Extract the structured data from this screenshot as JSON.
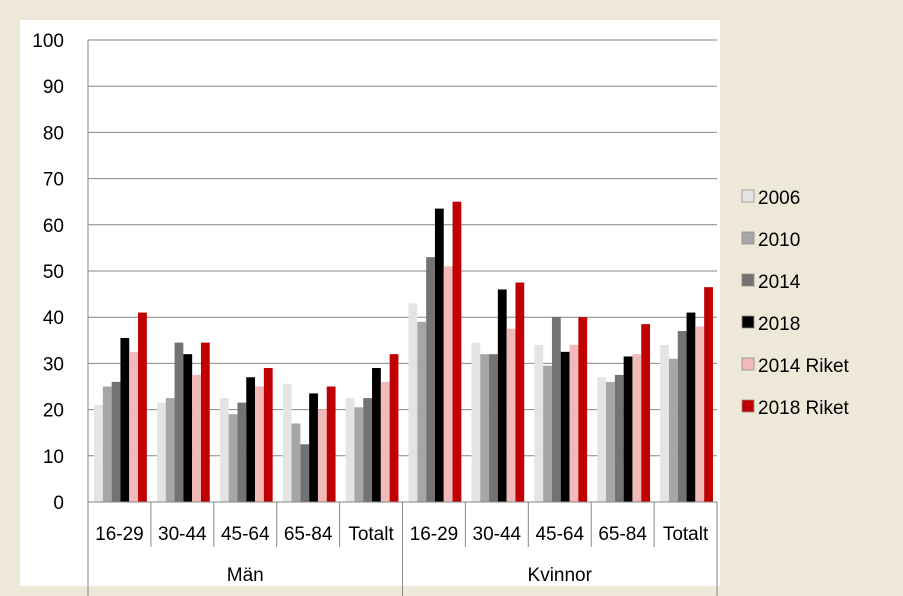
{
  "chart_data": {
    "type": "bar",
    "title": "",
    "categories": [
      "16-29",
      "30-44",
      "45-64",
      "65-84",
      "Totalt",
      "16-29",
      "30-44",
      "45-64",
      "65-84",
      "Totalt"
    ],
    "groups": [
      {
        "label": "Män",
        "count": 5
      },
      {
        "label": "Kvinnor",
        "count": 5
      }
    ],
    "series": [
      {
        "name": "2006",
        "color": "#e4e4e4",
        "values": [
          21,
          21.5,
          22.5,
          25.5,
          22.5,
          43,
          34.5,
          34,
          27,
          34
        ]
      },
      {
        "name": "2010",
        "color": "#a6a6a6",
        "values": [
          25,
          22.5,
          19,
          17,
          20.5,
          39,
          32,
          29.5,
          26,
          31
        ]
      },
      {
        "name": "2014",
        "color": "#737373",
        "values": [
          26,
          34.5,
          21.5,
          12.5,
          22.5,
          53,
          32,
          40,
          27.5,
          37
        ]
      },
      {
        "name": "2018",
        "color": "#000000",
        "values": [
          35.5,
          32,
          27,
          23.5,
          29,
          63.5,
          46,
          32.5,
          31.5,
          41
        ]
      },
      {
        "name": "2014 Riket",
        "color": "#f2b9b9",
        "values": [
          32.5,
          27.5,
          25,
          20,
          26,
          51,
          37.5,
          34,
          32,
          38
        ]
      },
      {
        "name": "2018 Riket",
        "color": "#c00000",
        "values": [
          41,
          34.5,
          29,
          25,
          32,
          65,
          47.5,
          40,
          38.5,
          46.5
        ]
      }
    ],
    "ylim": [
      0,
      100
    ],
    "yticks": [
      0,
      10,
      20,
      30,
      40,
      50,
      60,
      70,
      80,
      90,
      100
    ],
    "grid": true,
    "legend": "right",
    "plot_background": "#ffffff",
    "frame_background": "#eee8d8"
  }
}
